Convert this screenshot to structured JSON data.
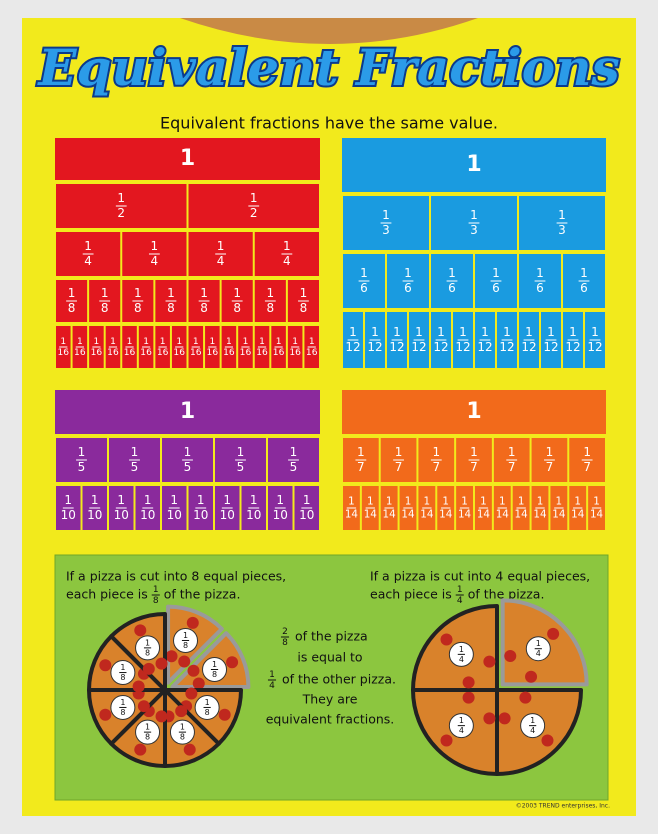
{
  "title": "Equivalent Fractions",
  "subtitle": "Equivalent fractions have the same value.",
  "bars": [
    {
      "whole": "1",
      "rows": [
        {
          "numerator": "1",
          "denominator": "2"
        },
        {
          "numerator": "1",
          "denominator": "4"
        },
        {
          "numerator": "1",
          "denominator": "8"
        },
        {
          "numerator": "1",
          "denominator": "16"
        }
      ]
    },
    {
      "whole": "1",
      "rows": [
        {
          "numerator": "1",
          "denominator": "3"
        },
        {
          "numerator": "1",
          "denominator": "6"
        },
        {
          "numerator": "1",
          "denominator": "12"
        }
      ]
    },
    {
      "whole": "1",
      "rows": [
        {
          "numerator": "1",
          "denominator": "5"
        },
        {
          "numerator": "1",
          "denominator": "10"
        }
      ]
    },
    {
      "whole": "1",
      "rows": [
        {
          "numerator": "1",
          "denominator": "7"
        },
        {
          "numerator": "1",
          "denominator": "14"
        }
      ]
    }
  ],
  "pizza_panel": {
    "left_caption": {
      "line1": "If a pizza is cut into 8 equal pieces,",
      "before": "each piece is",
      "numerator": "1",
      "denominator": "8",
      "after": "of the pizza."
    },
    "right_caption": {
      "line1": "If a pizza is cut into 4 equal pieces,",
      "before": "each piece is",
      "numerator": "1",
      "denominator": "4",
      "after": "of the pizza."
    },
    "middle": {
      "fraction1": {
        "numerator": "2",
        "denominator": "8"
      },
      "line1": "of the pizza",
      "line2": "is equal to",
      "fraction2": {
        "numerator": "1",
        "denominator": "4"
      },
      "line3": "of the other pizza.",
      "line4": "They are",
      "line5": "equivalent fractions."
    },
    "pizzas": [
      {
        "numerator": "1",
        "denominator": "8"
      },
      {
        "numerator": "1",
        "denominator": "4"
      }
    ]
  },
  "footer": "©2003 TREND enterprises, Inc."
}
